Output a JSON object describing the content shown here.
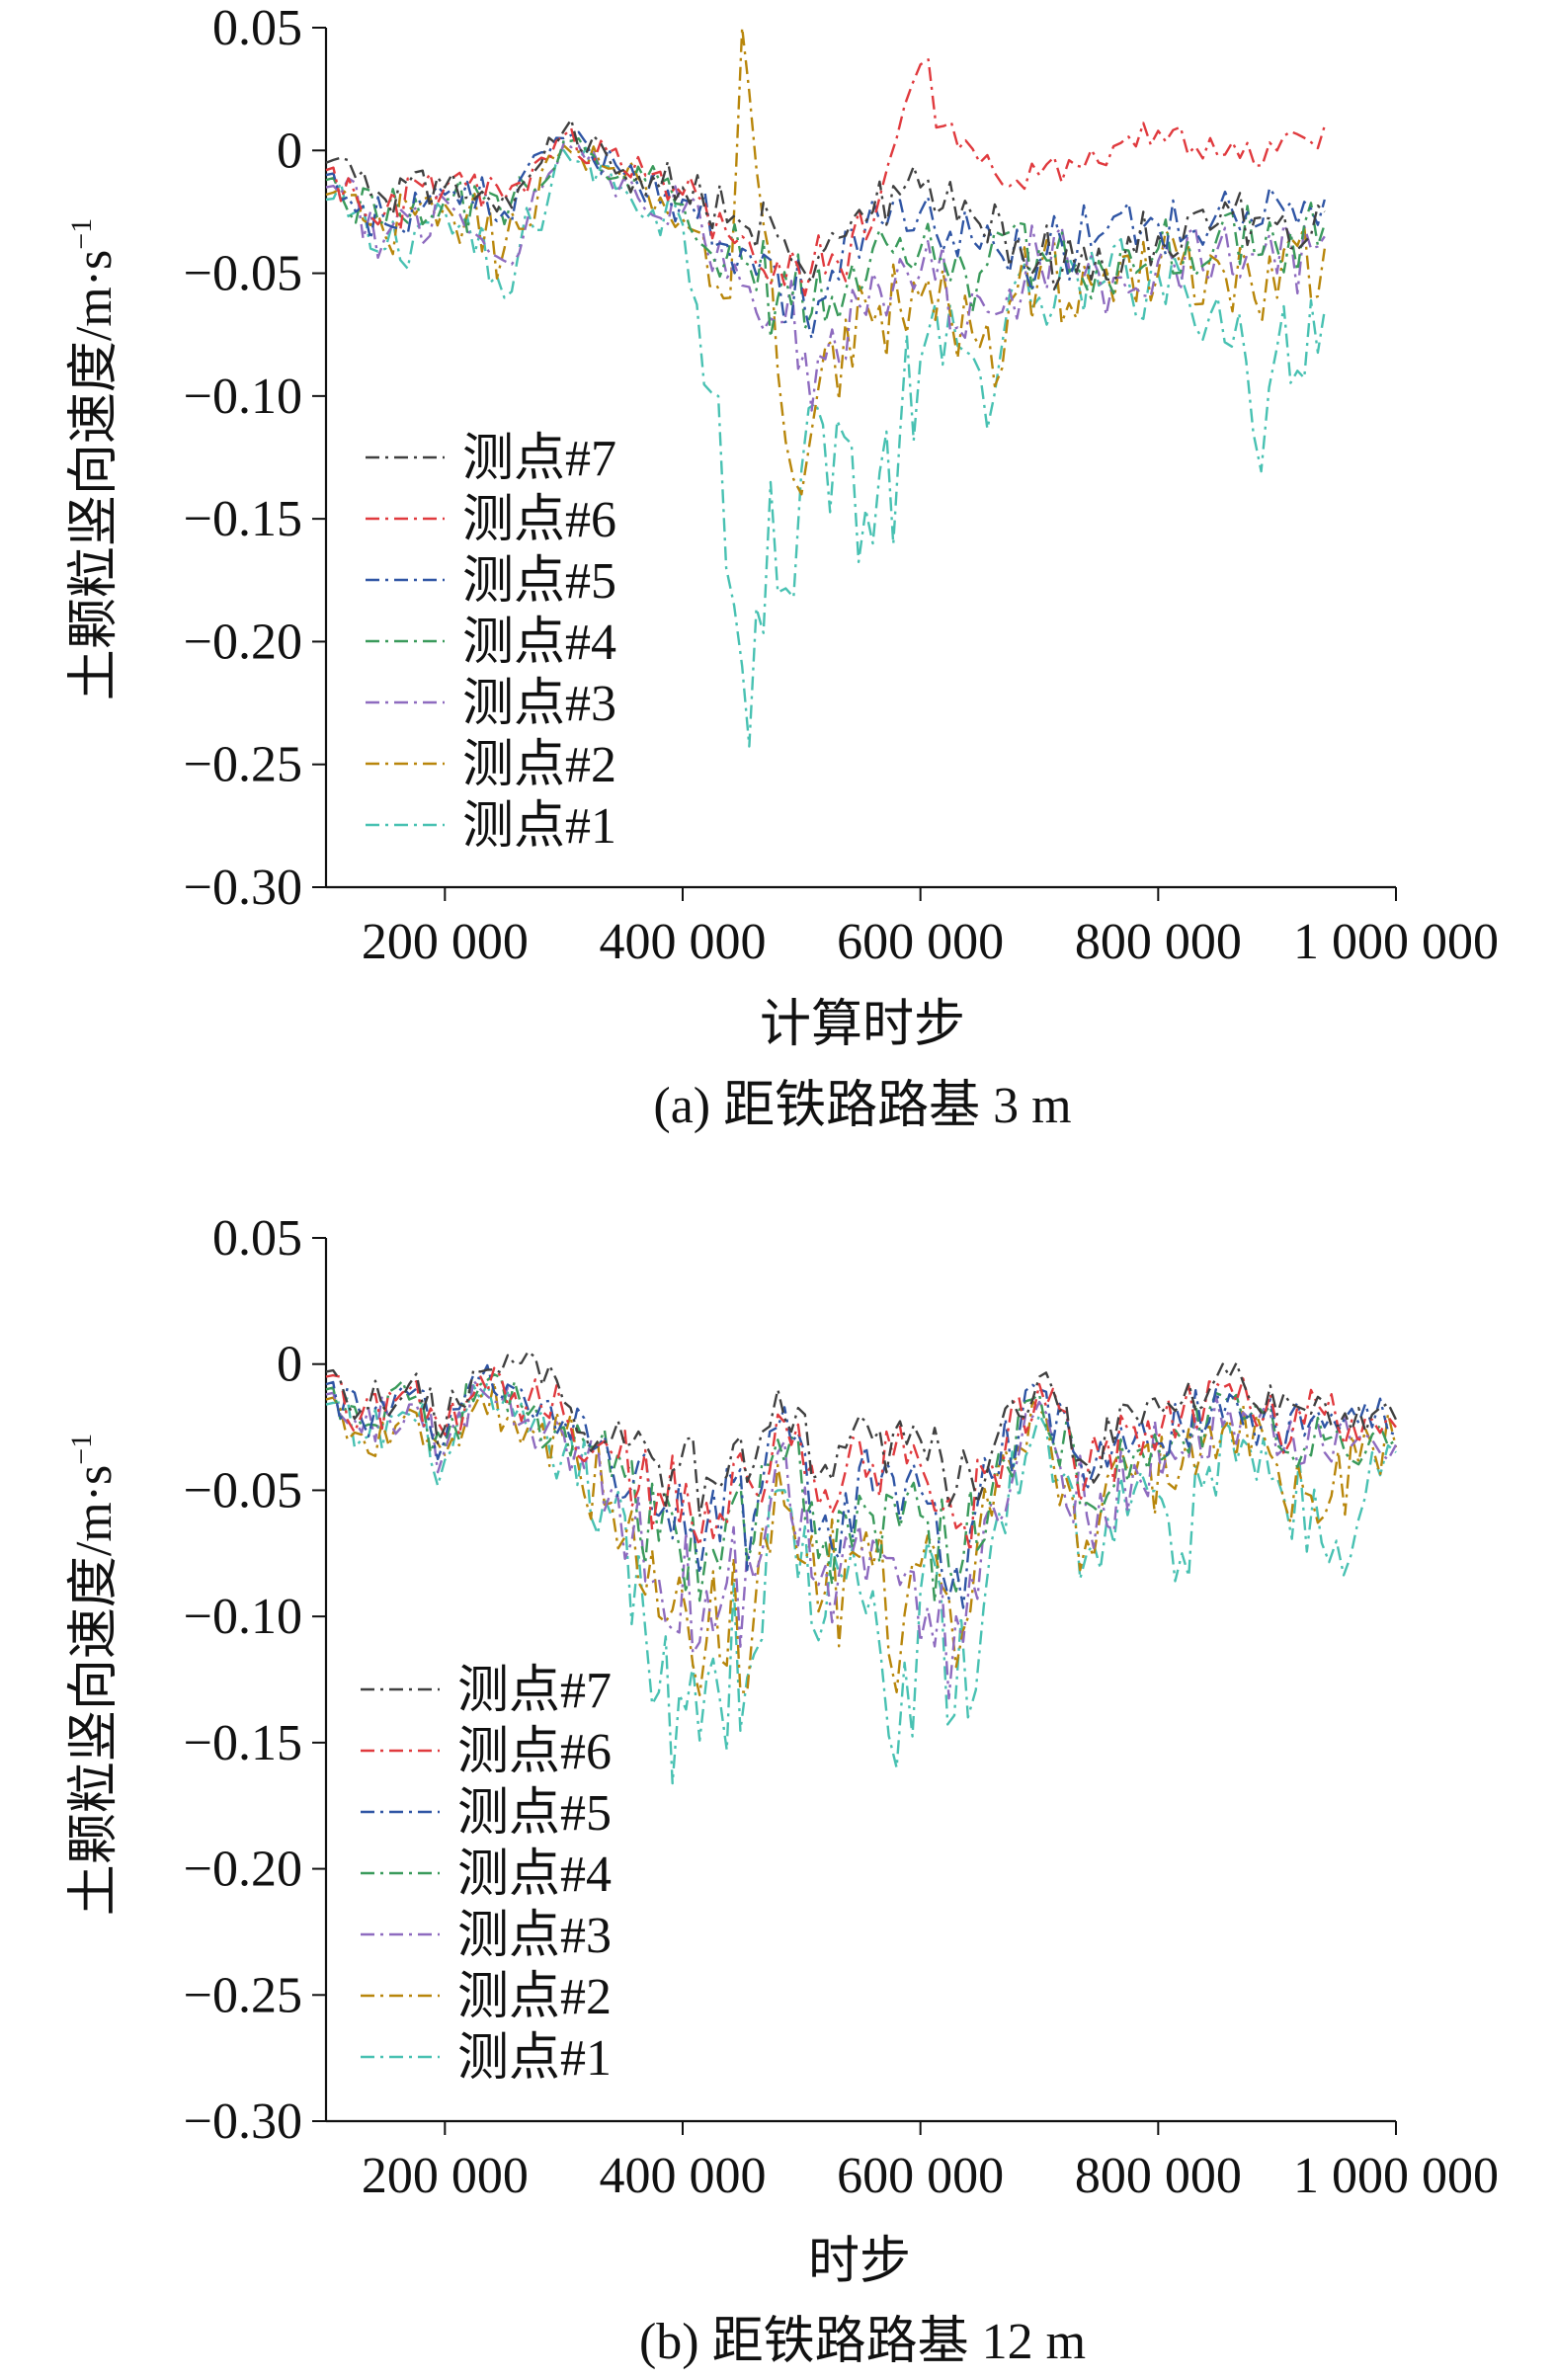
{
  "colors": {
    "测点#7": "#404040",
    "测点#6": "#e03a3e",
    "测点#5": "#2f55a4",
    "测点#4": "#3a9a5b",
    "测点#3": "#8e6bbf",
    "测点#2": "#b8860b",
    "测点#1": "#48c1b2"
  },
  "chart_data": [
    {
      "type": "line",
      "caption": "(a) 距铁路路基 3 m",
      "xlabel": "计算时步",
      "ylabel": "土颗粒竖向速度/m·s",
      "ylabel_sup": "−1",
      "xlim": [
        100000,
        1000000
      ],
      "ylim": [
        -0.3,
        0.05
      ],
      "xticks": [
        200000,
        400000,
        600000,
        800000,
        1000000
      ],
      "xtick_labels": [
        "200 000",
        "400 000",
        "600 000",
        "800 000",
        "1 000 000"
      ],
      "yticks": [
        0.05,
        0,
        -0.05,
        -0.1,
        -0.15,
        -0.2,
        -0.25,
        -0.3
      ],
      "ytick_labels": [
        "0.05",
        "0",
        "−0.05",
        "−0.10",
        "−0.15",
        "−0.20",
        "−0.25",
        "−0.30"
      ],
      "legend_position": "lower-left",
      "series": [
        {
          "name": "测点#7",
          "x": [
            100000,
            150000,
            200000,
            250000,
            300000,
            350000,
            400000,
            450000,
            480000,
            520000,
            560000,
            600000,
            650000,
            700000,
            750000,
            800000,
            850000,
            900000,
            940000
          ],
          "values": [
            -0.005,
            -0.02,
            -0.015,
            -0.018,
            0.008,
            -0.008,
            -0.015,
            -0.03,
            -0.035,
            -0.04,
            -0.025,
            -0.015,
            -0.03,
            -0.045,
            -0.04,
            -0.035,
            -0.03,
            -0.03,
            -0.025
          ]
        },
        {
          "name": "测点#6",
          "x": [
            100000,
            150000,
            200000,
            250000,
            300000,
            350000,
            400000,
            450000,
            480000,
            520000,
            560000,
            580000,
            600000,
            620000,
            650000,
            700000,
            750000,
            800000,
            850000,
            900000,
            940000
          ],
          "values": [
            -0.008,
            -0.025,
            -0.015,
            -0.02,
            0.006,
            -0.008,
            -0.018,
            -0.035,
            -0.045,
            -0.05,
            -0.03,
            0.005,
            0.035,
            0.01,
            -0.005,
            -0.01,
            -0.005,
            0.008,
            -0.002,
            0.0,
            0.01
          ]
        },
        {
          "name": "测点#5",
          "x": [
            100000,
            150000,
            200000,
            250000,
            300000,
            350000,
            400000,
            450000,
            480000,
            520000,
            560000,
            600000,
            650000,
            700000,
            750000,
            800000,
            850000,
            900000,
            940000
          ],
          "values": [
            -0.01,
            -0.03,
            -0.018,
            -0.025,
            0.005,
            -0.01,
            -0.02,
            -0.04,
            -0.05,
            -0.06,
            -0.02,
            -0.025,
            -0.04,
            -0.045,
            -0.035,
            -0.03,
            -0.025,
            -0.02,
            -0.02
          ]
        },
        {
          "name": "测点#4",
          "x": [
            100000,
            150000,
            200000,
            250000,
            300000,
            350000,
            400000,
            450000,
            480000,
            520000,
            560000,
            600000,
            650000,
            700000,
            750000,
            800000,
            850000,
            900000,
            940000
          ],
          "values": [
            -0.012,
            -0.03,
            -0.02,
            -0.03,
            0.004,
            -0.01,
            -0.022,
            -0.045,
            -0.06,
            -0.07,
            -0.04,
            -0.04,
            -0.05,
            -0.04,
            -0.045,
            -0.04,
            -0.035,
            -0.04,
            -0.03
          ]
        },
        {
          "name": "测点#3",
          "x": [
            100000,
            150000,
            200000,
            250000,
            300000,
            350000,
            400000,
            450000,
            480000,
            520000,
            560000,
            600000,
            650000,
            700000,
            750000,
            800000,
            850000,
            900000,
            940000
          ],
          "values": [
            -0.015,
            -0.035,
            -0.02,
            -0.045,
            0.003,
            -0.012,
            -0.025,
            -0.055,
            -0.07,
            -0.085,
            -0.05,
            -0.05,
            -0.06,
            -0.045,
            -0.05,
            -0.045,
            -0.04,
            -0.05,
            -0.035
          ]
        },
        {
          "name": "测点#2",
          "x": [
            100000,
            150000,
            200000,
            250000,
            300000,
            350000,
            400000,
            440000,
            450000,
            480000,
            500000,
            520000,
            560000,
            600000,
            650000,
            700000,
            750000,
            800000,
            850000,
            900000,
            940000
          ],
          "values": [
            -0.018,
            -0.035,
            -0.022,
            -0.04,
            0.002,
            -0.012,
            -0.028,
            -0.06,
            0.05,
            -0.09,
            -0.14,
            -0.08,
            -0.07,
            -0.06,
            -0.08,
            -0.05,
            -0.055,
            -0.05,
            -0.045,
            -0.06,
            -0.04
          ]
        },
        {
          "name": "测点#1",
          "x": [
            100000,
            150000,
            200000,
            250000,
            300000,
            350000,
            400000,
            430000,
            450000,
            480000,
            500000,
            530000,
            560000,
            600000,
            650000,
            700000,
            750000,
            800000,
            850000,
            880000,
            900000,
            940000
          ],
          "values": [
            -0.02,
            -0.04,
            -0.025,
            -0.06,
            0.0,
            -0.015,
            -0.03,
            -0.1,
            -0.21,
            -0.18,
            -0.13,
            -0.11,
            -0.16,
            -0.085,
            -0.09,
            -0.06,
            -0.055,
            -0.05,
            -0.06,
            -0.115,
            -0.08,
            -0.065
          ]
        }
      ]
    },
    {
      "type": "line",
      "caption": "(b) 距铁路路基 12 m",
      "xlabel": "时步",
      "ylabel": "土颗粒竖向速度/m·s",
      "ylabel_sup": "−1",
      "xlim": [
        100000,
        1000000
      ],
      "ylim": [
        -0.3,
        0.05
      ],
      "xticks": [
        200000,
        400000,
        600000,
        800000,
        1000000
      ],
      "xtick_labels": [
        "200 000",
        "400 000",
        "600 000",
        "800 000",
        "1 000 000"
      ],
      "yticks": [
        0.05,
        0,
        -0.05,
        -0.1,
        -0.15,
        -0.2,
        -0.25,
        -0.3
      ],
      "ytick_labels": [
        "0.05",
        "0",
        "−0.05",
        "−0.10",
        "−0.15",
        "−0.20",
        "−0.25",
        "−0.30"
      ],
      "legend_position": "lower-left",
      "series": [
        {
          "name": "测点#7",
          "x": [
            100000,
            130000,
            170000,
            200000,
            230000,
            270000,
            300000,
            340000,
            380000,
            420000,
            460000,
            480000,
            520000,
            560000,
            600000,
            630000,
            660000,
            700000,
            740000,
            780000,
            820000,
            860000,
            900000,
            940000,
            980000,
            1000000
          ],
          "values": [
            -0.003,
            -0.018,
            -0.008,
            -0.025,
            -0.003,
            0.005,
            -0.015,
            -0.03,
            -0.04,
            -0.045,
            -0.04,
            -0.01,
            -0.04,
            -0.03,
            -0.03,
            -0.05,
            -0.035,
            -0.005,
            -0.04,
            -0.02,
            -0.015,
            -0.005,
            -0.02,
            -0.015,
            -0.02,
            -0.022
          ]
        },
        {
          "name": "测点#6",
          "x": [
            100000,
            130000,
            170000,
            200000,
            230000,
            270000,
            300000,
            340000,
            380000,
            420000,
            460000,
            480000,
            520000,
            560000,
            600000,
            630000,
            660000,
            700000,
            740000,
            780000,
            820000,
            860000,
            900000,
            940000,
            980000,
            1000000
          ],
          "values": [
            -0.005,
            -0.02,
            -0.01,
            -0.028,
            -0.005,
            -0.015,
            -0.02,
            -0.035,
            -0.05,
            -0.055,
            -0.05,
            -0.02,
            -0.05,
            -0.04,
            -0.04,
            -0.065,
            -0.04,
            -0.008,
            -0.045,
            -0.025,
            -0.02,
            -0.008,
            -0.025,
            -0.02,
            -0.022,
            -0.025
          ]
        },
        {
          "name": "测点#5",
          "x": [
            100000,
            130000,
            170000,
            200000,
            230000,
            270000,
            300000,
            340000,
            380000,
            420000,
            460000,
            480000,
            520000,
            560000,
            600000,
            630000,
            660000,
            700000,
            740000,
            780000,
            820000,
            860000,
            900000,
            940000,
            980000,
            1000000
          ],
          "values": [
            -0.008,
            -0.022,
            -0.012,
            -0.03,
            -0.006,
            -0.018,
            -0.022,
            -0.04,
            -0.06,
            -0.065,
            -0.06,
            -0.025,
            -0.06,
            -0.05,
            -0.05,
            -0.08,
            -0.045,
            -0.01,
            -0.05,
            -0.03,
            -0.025,
            -0.012,
            -0.028,
            -0.025,
            -0.025,
            -0.028
          ]
        },
        {
          "name": "测点#4",
          "x": [
            100000,
            130000,
            170000,
            200000,
            230000,
            270000,
            300000,
            340000,
            380000,
            420000,
            460000,
            480000,
            520000,
            560000,
            600000,
            630000,
            660000,
            700000,
            740000,
            780000,
            820000,
            860000,
            900000,
            940000,
            980000,
            1000000
          ],
          "values": [
            -0.01,
            -0.025,
            -0.014,
            -0.032,
            -0.008,
            -0.02,
            -0.025,
            -0.045,
            -0.07,
            -0.075,
            -0.07,
            -0.03,
            -0.07,
            -0.06,
            -0.06,
            -0.09,
            -0.05,
            -0.012,
            -0.055,
            -0.035,
            -0.03,
            -0.015,
            -0.032,
            -0.03,
            -0.028,
            -0.03
          ]
        },
        {
          "name": "测点#3",
          "x": [
            100000,
            130000,
            170000,
            200000,
            230000,
            270000,
            300000,
            340000,
            380000,
            420000,
            460000,
            480000,
            520000,
            560000,
            600000,
            630000,
            660000,
            700000,
            740000,
            780000,
            820000,
            860000,
            900000,
            940000,
            980000,
            1000000
          ],
          "values": [
            -0.012,
            -0.027,
            -0.016,
            -0.034,
            -0.01,
            -0.022,
            -0.028,
            -0.05,
            -0.085,
            -0.09,
            -0.085,
            -0.035,
            -0.08,
            -0.07,
            -0.11,
            -0.1,
            -0.055,
            -0.015,
            -0.06,
            -0.04,
            -0.035,
            -0.018,
            -0.036,
            -0.035,
            -0.03,
            -0.032
          ]
        },
        {
          "name": "测点#2",
          "x": [
            100000,
            130000,
            170000,
            200000,
            230000,
            270000,
            300000,
            340000,
            380000,
            420000,
            460000,
            480000,
            520000,
            560000,
            580000,
            600000,
            630000,
            660000,
            700000,
            740000,
            780000,
            820000,
            860000,
            900000,
            940000,
            980000,
            1000000
          ],
          "values": [
            -0.014,
            -0.028,
            -0.018,
            -0.036,
            -0.012,
            -0.025,
            -0.03,
            -0.055,
            -0.1,
            -0.11,
            -0.1,
            -0.04,
            -0.09,
            -0.08,
            -0.13,
            -0.08,
            -0.12,
            -0.06,
            -0.018,
            -0.07,
            -0.045,
            -0.04,
            -0.022,
            -0.04,
            -0.06,
            -0.032,
            -0.033
          ]
        },
        {
          "name": "测点#1",
          "x": [
            100000,
            130000,
            170000,
            200000,
            230000,
            270000,
            300000,
            340000,
            380000,
            420000,
            460000,
            480000,
            520000,
            560000,
            580000,
            600000,
            640000,
            660000,
            700000,
            740000,
            780000,
            820000,
            860000,
            900000,
            950000,
            980000,
            1000000
          ],
          "values": [
            -0.016,
            -0.03,
            -0.02,
            -0.038,
            -0.014,
            -0.028,
            -0.035,
            -0.06,
            -0.13,
            -0.125,
            -0.115,
            -0.05,
            -0.1,
            -0.09,
            -0.16,
            -0.09,
            -0.14,
            -0.07,
            -0.02,
            -0.075,
            -0.05,
            -0.075,
            -0.025,
            -0.045,
            -0.07,
            -0.035,
            -0.035
          ]
        }
      ]
    }
  ]
}
